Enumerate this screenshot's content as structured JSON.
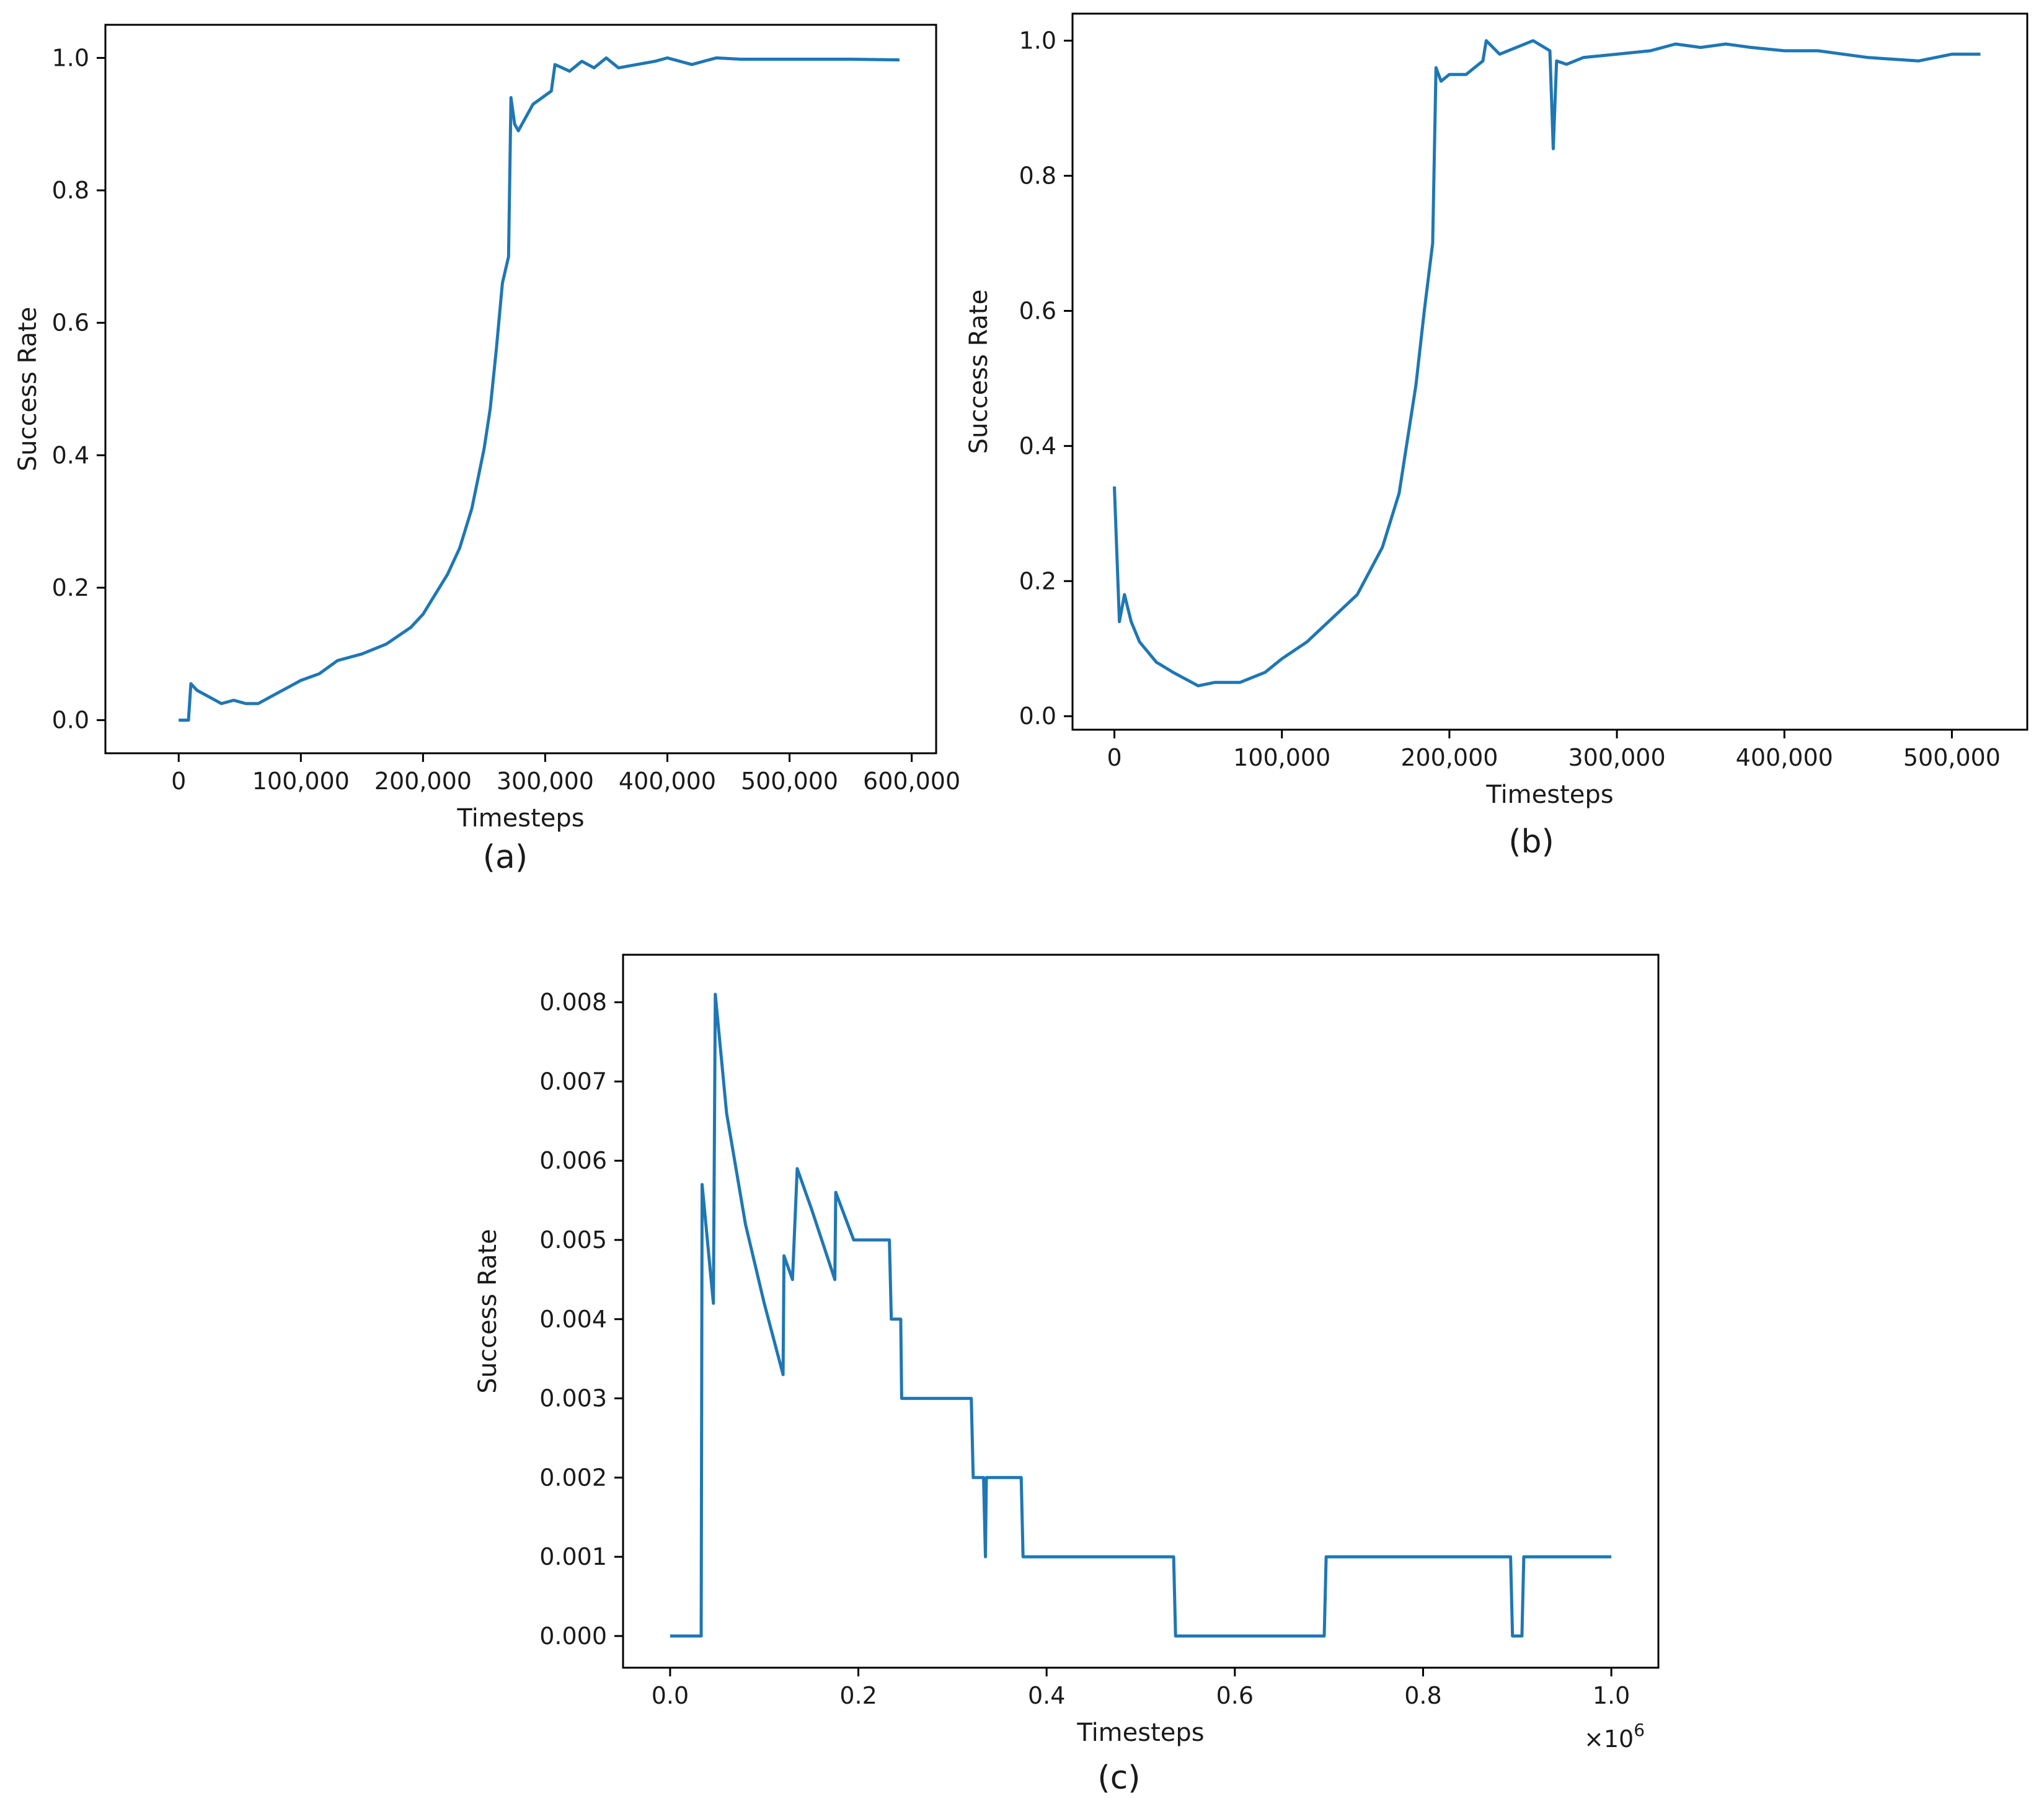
{
  "colors": {
    "line": "#1f77b4",
    "frame": "#000000"
  },
  "chart_data": [
    {
      "id": "a",
      "type": "line",
      "caption": "(a)",
      "xlabel": "Timesteps",
      "ylabel": "Success Rate",
      "xlim": [
        -60000,
        620000
      ],
      "ylim": [
        -0.05,
        1.05
      ],
      "xticks": [
        0,
        100000,
        200000,
        300000,
        400000,
        500000,
        600000
      ],
      "xtick_labels": [
        "0",
        "100,000",
        "200,000",
        "300,000",
        "400,000",
        "500,000",
        "600,000"
      ],
      "yticks": [
        0.0,
        0.2,
        0.4,
        0.6,
        0.8,
        1.0
      ],
      "ytick_labels": [
        "0.0",
        "0.2",
        "0.4",
        "0.6",
        "0.8",
        "1.0"
      ],
      "series": [
        {
          "name": "success_rate",
          "points": [
            [
              0,
              0
            ],
            [
              8000,
              0
            ],
            [
              10000,
              0.055
            ],
            [
              15000,
              0.045
            ],
            [
              25000,
              0.035
            ],
            [
              35000,
              0.025
            ],
            [
              45000,
              0.03
            ],
            [
              55000,
              0.025
            ],
            [
              65000,
              0.025
            ],
            [
              75000,
              0.035
            ],
            [
              90000,
              0.05
            ],
            [
              100000,
              0.06
            ],
            [
              115000,
              0.07
            ],
            [
              130000,
              0.09
            ],
            [
              150000,
              0.1
            ],
            [
              170000,
              0.115
            ],
            [
              190000,
              0.14
            ],
            [
              200000,
              0.16
            ],
            [
              210000,
              0.19
            ],
            [
              220000,
              0.22
            ],
            [
              230000,
              0.26
            ],
            [
              240000,
              0.32
            ],
            [
              250000,
              0.41
            ],
            [
              255000,
              0.47
            ],
            [
              260000,
              0.56
            ],
            [
              265000,
              0.66
            ],
            [
              270000,
              0.7
            ],
            [
              272000,
              0.94
            ],
            [
              275000,
              0.9
            ],
            [
              278000,
              0.89
            ],
            [
              290000,
              0.93
            ],
            [
              305000,
              0.95
            ],
            [
              308000,
              0.99
            ],
            [
              320000,
              0.98
            ],
            [
              330000,
              0.995
            ],
            [
              340000,
              0.985
            ],
            [
              350000,
              1.0
            ],
            [
              360000,
              0.985
            ],
            [
              375000,
              0.99
            ],
            [
              390000,
              0.995
            ],
            [
              400000,
              1.0
            ],
            [
              420000,
              0.99
            ],
            [
              440000,
              1.0
            ],
            [
              460000,
              0.998
            ],
            [
              500000,
              0.998
            ],
            [
              550000,
              0.998
            ],
            [
              590000,
              0.997
            ]
          ]
        }
      ]
    },
    {
      "id": "b",
      "type": "line",
      "caption": "(b)",
      "xlabel": "Timesteps",
      "ylabel": "Success Rate",
      "xlim": [
        -25000,
        545000
      ],
      "ylim": [
        -0.02,
        1.04
      ],
      "xticks": [
        0,
        100000,
        200000,
        300000,
        400000,
        500000
      ],
      "xtick_labels": [
        "0",
        "100,000",
        "200,000",
        "300,000",
        "400,000",
        "500,000"
      ],
      "yticks": [
        0.0,
        0.2,
        0.4,
        0.6,
        0.8,
        1.0
      ],
      "ytick_labels": [
        "0.0",
        "0.2",
        "0.4",
        "0.6",
        "0.8",
        "1.0"
      ],
      "series": [
        {
          "name": "success_rate",
          "points": [
            [
              0,
              0.34
            ],
            [
              3000,
              0.14
            ],
            [
              6000,
              0.18
            ],
            [
              10000,
              0.14
            ],
            [
              15000,
              0.11
            ],
            [
              25000,
              0.08
            ],
            [
              35000,
              0.065
            ],
            [
              50000,
              0.045
            ],
            [
              60000,
              0.05
            ],
            [
              75000,
              0.05
            ],
            [
              90000,
              0.065
            ],
            [
              100000,
              0.085
            ],
            [
              115000,
              0.11
            ],
            [
              130000,
              0.145
            ],
            [
              145000,
              0.18
            ],
            [
              160000,
              0.25
            ],
            [
              170000,
              0.33
            ],
            [
              180000,
              0.49
            ],
            [
              185000,
              0.6
            ],
            [
              190000,
              0.7
            ],
            [
              192000,
              0.96
            ],
            [
              195000,
              0.94
            ],
            [
              200000,
              0.95
            ],
            [
              210000,
              0.95
            ],
            [
              220000,
              0.97
            ],
            [
              222000,
              1.0
            ],
            [
              230000,
              0.98
            ],
            [
              250000,
              1.0
            ],
            [
              260000,
              0.985
            ],
            [
              262000,
              0.84
            ],
            [
              264000,
              0.97
            ],
            [
              270000,
              0.965
            ],
            [
              280000,
              0.975
            ],
            [
              300000,
              0.98
            ],
            [
              320000,
              0.985
            ],
            [
              335000,
              0.995
            ],
            [
              350000,
              0.99
            ],
            [
              365000,
              0.995
            ],
            [
              380000,
              0.99
            ],
            [
              400000,
              0.985
            ],
            [
              420000,
              0.985
            ],
            [
              450000,
              0.975
            ],
            [
              480000,
              0.97
            ],
            [
              500000,
              0.98
            ],
            [
              517000,
              0.98
            ]
          ]
        }
      ]
    },
    {
      "id": "c",
      "type": "line",
      "caption": "(c)",
      "xlabel": "Timesteps",
      "ylabel": "Success Rate",
      "x_multiplier": "×10",
      "x_multiplier_exp": "6",
      "xlim": [
        -0.05,
        1.05
      ],
      "ylim": [
        -0.0004,
        0.0086
      ],
      "xticks": [
        0.0,
        0.2,
        0.4,
        0.6,
        0.8,
        1.0
      ],
      "xtick_labels": [
        "0.0",
        "0.2",
        "0.4",
        "0.6",
        "0.8",
        "1.0"
      ],
      "yticks": [
        0.0,
        0.001,
        0.002,
        0.003,
        0.004,
        0.005,
        0.006,
        0.007,
        0.008
      ],
      "ytick_labels": [
        "0.000",
        "0.001",
        "0.002",
        "0.003",
        "0.004",
        "0.005",
        "0.006",
        "0.007",
        "0.008"
      ],
      "series": [
        {
          "name": "success_rate",
          "points": [
            [
              0.0,
              0.0
            ],
            [
              0.033,
              0.0
            ],
            [
              0.034,
              0.0057
            ],
            [
              0.046,
              0.0042
            ],
            [
              0.048,
              0.0081
            ],
            [
              0.06,
              0.0066
            ],
            [
              0.08,
              0.0052
            ],
            [
              0.1,
              0.0042
            ],
            [
              0.12,
              0.0033
            ],
            [
              0.121,
              0.0048
            ],
            [
              0.13,
              0.0045
            ],
            [
              0.135,
              0.0059
            ],
            [
              0.15,
              0.0054
            ],
            [
              0.175,
              0.0045
            ],
            [
              0.176,
              0.0056
            ],
            [
              0.195,
              0.005
            ],
            [
              0.233,
              0.005
            ],
            [
              0.235,
              0.004
            ],
            [
              0.245,
              0.004
            ],
            [
              0.246,
              0.003
            ],
            [
              0.32,
              0.003
            ],
            [
              0.322,
              0.002
            ],
            [
              0.333,
              0.002
            ],
            [
              0.335,
              0.001
            ],
            [
              0.336,
              0.002
            ],
            [
              0.373,
              0.002
            ],
            [
              0.375,
              0.001
            ],
            [
              0.535,
              0.001
            ],
            [
              0.537,
              0.0
            ],
            [
              0.695,
              0.0
            ],
            [
              0.697,
              0.001
            ],
            [
              0.893,
              0.001
            ],
            [
              0.895,
              0.0
            ],
            [
              0.905,
              0.0
            ],
            [
              0.907,
              0.001
            ],
            [
              1.0,
              0.001
            ]
          ]
        }
      ]
    }
  ]
}
